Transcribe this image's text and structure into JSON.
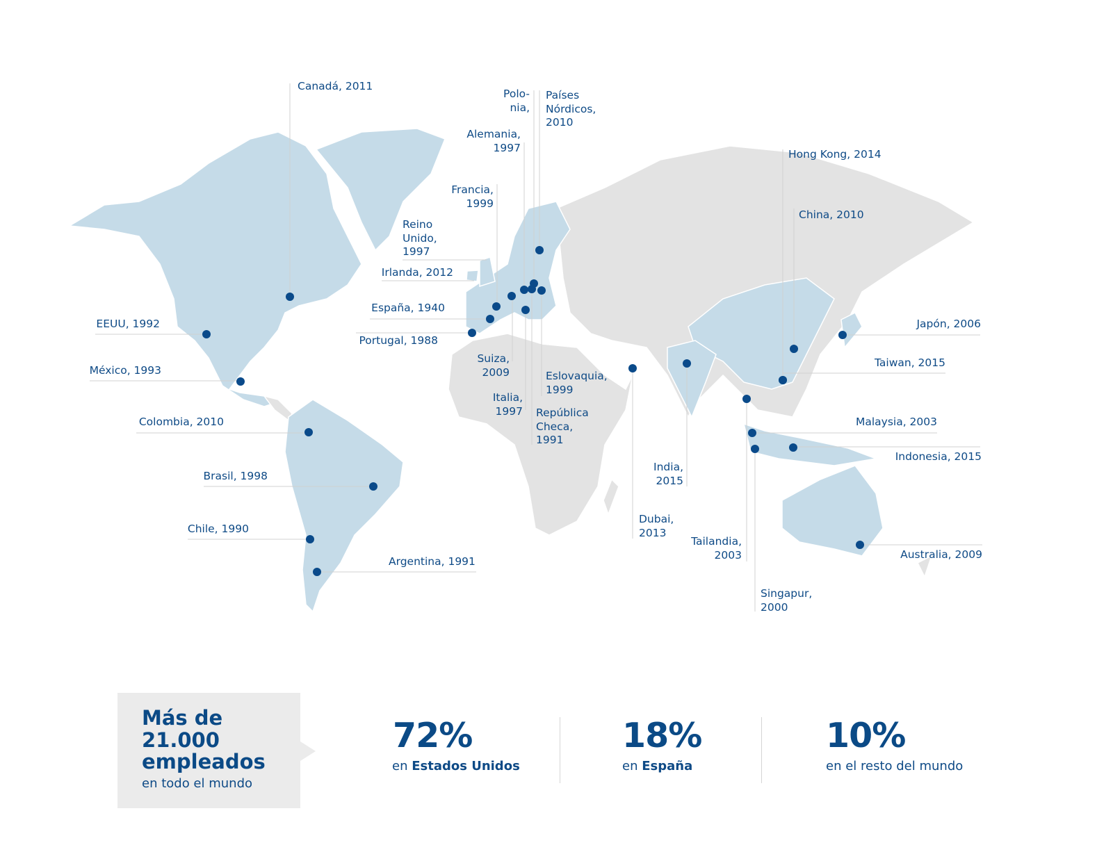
{
  "locations": [
    {
      "label": [
        "Canadá, 2011"
      ]
    },
    {
      "label": [
        "EEUU, 1992"
      ]
    },
    {
      "label": [
        "México, 1993"
      ]
    },
    {
      "label": [
        "Colombia, 2010"
      ]
    },
    {
      "label": [
        "Brasil, 1998"
      ]
    },
    {
      "label": [
        "Chile, 1990"
      ]
    },
    {
      "label": [
        "Argentina, 1991"
      ]
    },
    {
      "label": [
        "Portugal, 1988"
      ]
    },
    {
      "label": [
        "España, 1940"
      ]
    },
    {
      "label": [
        "Irlanda, 2012"
      ]
    },
    {
      "label": [
        "Reino",
        "Unido,",
        "1997"
      ]
    },
    {
      "label": [
        "Francia,",
        "1999"
      ]
    },
    {
      "label": [
        "Alemania,",
        "1997"
      ]
    },
    {
      "label": [
        "Polo-",
        "nia,"
      ]
    },
    {
      "label": [
        "Países",
        "Nórdicos,",
        "2010"
      ]
    },
    {
      "label": [
        "Suiza,",
        "2009"
      ]
    },
    {
      "label": [
        "Italia,",
        "1997"
      ]
    },
    {
      "label": [
        "Eslovaquia,",
        "1999"
      ]
    },
    {
      "label": [
        "República",
        "Checa,",
        "1991"
      ]
    },
    {
      "label": [
        "Dubai,",
        "2013"
      ]
    },
    {
      "label": [
        "India,",
        "2015"
      ]
    },
    {
      "label": [
        "Tailandia,",
        "2003"
      ]
    },
    {
      "label": [
        "Singapur,",
        "2000"
      ]
    },
    {
      "label": [
        "Malaysia, 2003"
      ]
    },
    {
      "label": [
        "Indonesia, 2015"
      ]
    },
    {
      "label": [
        "Australia, 2009"
      ]
    },
    {
      "label": [
        "Taiwan, 2015"
      ]
    },
    {
      "label": [
        "Japón, 2006"
      ]
    },
    {
      "label": [
        "China, 2010"
      ]
    },
    {
      "label": [
        "Hong Kong, 2014"
      ]
    }
  ],
  "summary": {
    "headline": [
      "Más de",
      "21.000",
      "empleados"
    ],
    "subline": "en todo el mundo"
  },
  "stats": [
    {
      "value": "72%",
      "prefix": "en",
      "place": "Estados Unidos"
    },
    {
      "value": "18%",
      "prefix": "en",
      "place": "España"
    },
    {
      "value": "10%",
      "text": "en el resto del mundo"
    }
  ]
}
